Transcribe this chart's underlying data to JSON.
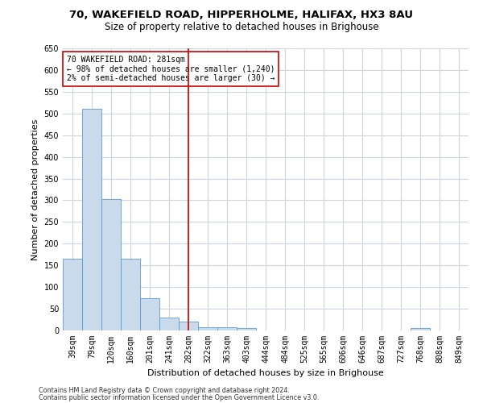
{
  "title1": "70, WAKEFIELD ROAD, HIPPERHOLME, HALIFAX, HX3 8AU",
  "title2": "Size of property relative to detached houses in Brighouse",
  "xlabel": "Distribution of detached houses by size in Brighouse",
  "ylabel": "Number of detached properties",
  "bar_labels": [
    "39sqm",
    "79sqm",
    "120sqm",
    "160sqm",
    "201sqm",
    "241sqm",
    "282sqm",
    "322sqm",
    "363sqm",
    "403sqm",
    "444sqm",
    "484sqm",
    "525sqm",
    "565sqm",
    "606sqm",
    "646sqm",
    "687sqm",
    "727sqm",
    "768sqm",
    "808sqm",
    "849sqm"
  ],
  "bar_values": [
    165,
    510,
    302,
    165,
    75,
    30,
    20,
    8,
    8,
    5,
    0,
    0,
    0,
    0,
    0,
    0,
    0,
    0,
    5,
    0,
    0
  ],
  "bar_color": "#c9daea",
  "bar_edge_color": "#5b9bd5",
  "highlight_index": 6,
  "highlight_color": "#cc0000",
  "annotation_line1": "70 WAKEFIELD ROAD: 281sqm",
  "annotation_line2": "← 98% of detached houses are smaller (1,240)",
  "annotation_line3": "2% of semi-detached houses are larger (30) →",
  "annotation_box_color": "#cc0000",
  "ylim": [
    0,
    650
  ],
  "yticks": [
    0,
    50,
    100,
    150,
    200,
    250,
    300,
    350,
    400,
    450,
    500,
    550,
    600,
    650
  ],
  "footer1": "Contains HM Land Registry data © Crown copyright and database right 2024.",
  "footer2": "Contains public sector information licensed under the Open Government Licence v3.0.",
  "bg_color": "#ffffff",
  "grid_color": "#ccd6e0",
  "title1_fontsize": 9.5,
  "title2_fontsize": 8.5,
  "tick_fontsize": 7,
  "ylabel_fontsize": 8,
  "xlabel_fontsize": 8,
  "annotation_fontsize": 7,
  "footer_fontsize": 5.8
}
